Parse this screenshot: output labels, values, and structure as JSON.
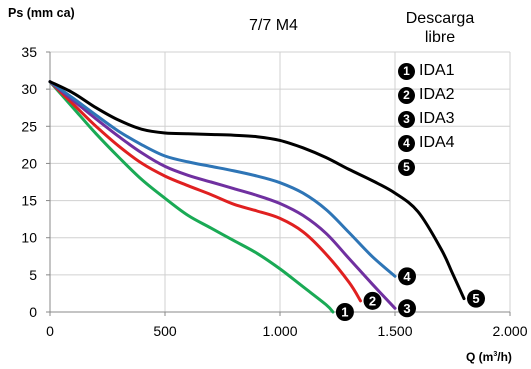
{
  "chart_data": {
    "type": "line",
    "title": "7/7 M4",
    "ylabel": "Ps (mm ca)",
    "xlabel_main": "Q (m",
    "xlabel_exp": "3",
    "xlabel_tail": "/h)",
    "free_discharge_label": [
      "Descarga",
      "libre"
    ],
    "xlim": [
      0,
      2000
    ],
    "ylim": [
      0,
      35
    ],
    "x_ticks": [
      0,
      500,
      1000,
      1500,
      2000
    ],
    "x_tick_labels": [
      "0",
      "500",
      "1.000",
      "1.500",
      "2.000"
    ],
    "y_ticks": [
      0,
      5,
      10,
      15,
      20,
      25,
      30,
      35
    ],
    "y_tick_labels": [
      "0",
      "5",
      "10",
      "15",
      "20",
      "25",
      "30",
      "35"
    ],
    "grid": true,
    "legend_position": "top-right",
    "legend": [
      {
        "num": "1",
        "label": "IDA1"
      },
      {
        "num": "2",
        "label": "IDA2"
      },
      {
        "num": "3",
        "label": "IDA3"
      },
      {
        "num": "4",
        "label": "IDA4"
      },
      {
        "num": "5",
        "label": ""
      }
    ],
    "series": [
      {
        "marker": "1",
        "color": "#1aaa55",
        "x": [
          0,
          100,
          200,
          300,
          400,
          500,
          600,
          700,
          800,
          900,
          1000,
          1100,
          1200,
          1230
        ],
        "y": [
          31,
          27.5,
          24,
          20.8,
          17.8,
          15.3,
          13,
          11.3,
          9.6,
          7.9,
          5.8,
          3.4,
          1,
          0
        ]
      },
      {
        "marker": "2",
        "color": "#e02020",
        "x": [
          0,
          100,
          200,
          300,
          400,
          500,
          600,
          700,
          800,
          900,
          1000,
          1100,
          1200,
          1300,
          1350
        ],
        "y": [
          31,
          28,
          25,
          22.3,
          20,
          18.3,
          17,
          15.8,
          14.5,
          13.6,
          12.6,
          10.8,
          7.8,
          4,
          1.5
        ]
      },
      {
        "marker": "3",
        "color": "#7030a0",
        "x": [
          0,
          100,
          200,
          300,
          400,
          500,
          600,
          700,
          800,
          900,
          1000,
          1100,
          1200,
          1300,
          1400,
          1500
        ],
        "y": [
          31,
          28.5,
          26,
          23.6,
          21.4,
          19.6,
          18.4,
          17.5,
          16.6,
          15.7,
          14.6,
          13,
          10.6,
          7.2,
          3.8,
          0.5
        ]
      },
      {
        "marker": "4",
        "color": "#2e75b6",
        "x": [
          0,
          100,
          200,
          300,
          400,
          500,
          600,
          700,
          800,
          900,
          1000,
          1100,
          1200,
          1300,
          1400,
          1500
        ],
        "y": [
          31,
          28.8,
          26.5,
          24.3,
          22.5,
          21,
          20.2,
          19.6,
          19,
          18.3,
          17.4,
          16,
          13.8,
          10.7,
          7.5,
          4.8
        ]
      },
      {
        "marker": "5",
        "color": "#000000",
        "x": [
          0,
          100,
          200,
          300,
          400,
          500,
          600,
          700,
          800,
          900,
          1000,
          1100,
          1200,
          1300,
          1400,
          1500,
          1600,
          1700,
          1750,
          1800
        ],
        "y": [
          31,
          29.5,
          27.5,
          25.8,
          24.6,
          24.1,
          24,
          23.9,
          23.8,
          23.6,
          23.1,
          22.1,
          20.8,
          19.2,
          17.7,
          16,
          13.5,
          8.5,
          5.2,
          1.8
        ]
      }
    ]
  }
}
